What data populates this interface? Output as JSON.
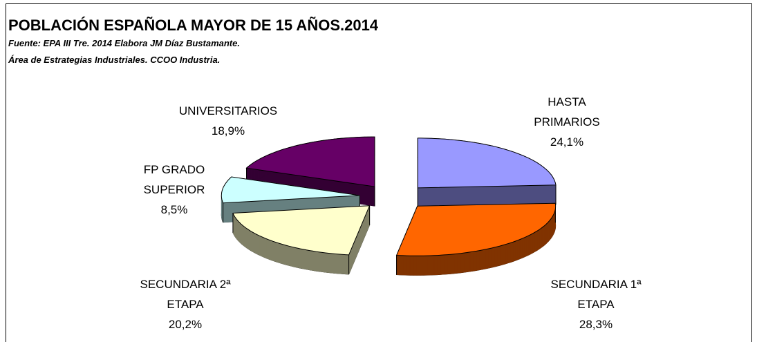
{
  "chart_data": {
    "type": "pie",
    "title": "POBLACIÓN ESPAÑOLA MAYOR DE 15 AÑOS.2014",
    "subtitle": [
      "Fuente: EPA III Tre. 2014 Elabora JM Díaz Bustamante.",
      "Área de Estrategias Industriales. CCOO Industria."
    ],
    "categories": [
      "HASTA PRIMARIOS",
      "SECUNDARIA 1ª ETAPA",
      "SECUNDARIA 2ª ETAPA",
      "FP GRADO SUPERIOR",
      "UNIVERSITARIOS"
    ],
    "values": [
      24.1,
      28.3,
      20.2,
      8.5,
      18.9
    ],
    "value_labels": [
      "24,1%",
      "28,3%",
      "20,2%",
      "8,5%",
      "18,9%"
    ],
    "colors": [
      "#9999ff",
      "#ff6600",
      "#ffffcc",
      "#ccffff",
      "#660066"
    ]
  }
}
